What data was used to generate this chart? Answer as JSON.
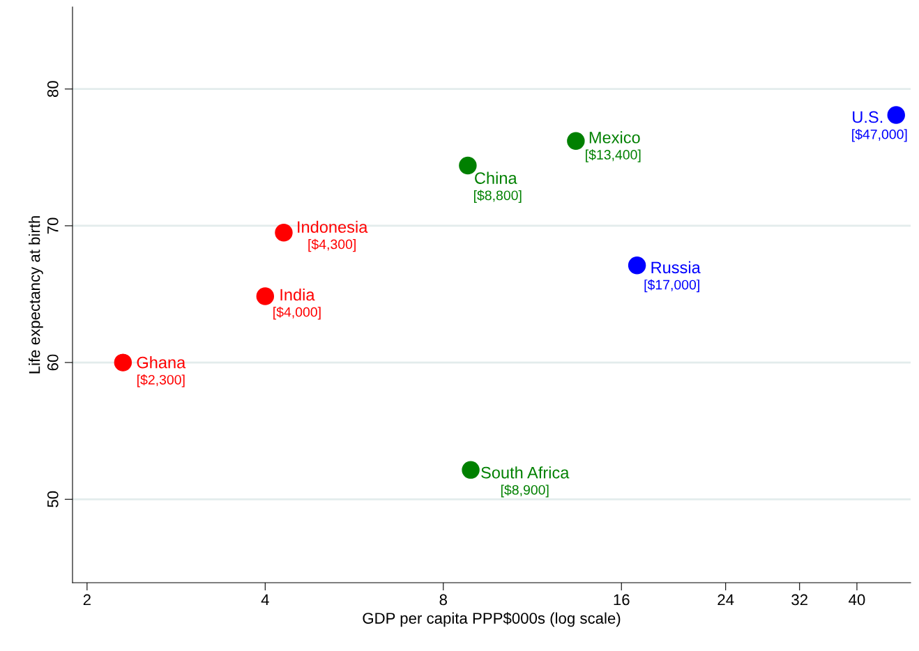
{
  "chart_data": {
    "type": "scatter",
    "xlabel": "GDP per capita PPP$000s (log scale)",
    "ylabel": "Life expectancy at birth",
    "log": "x",
    "grid": "y",
    "marker": "circle",
    "legend": false,
    "xlim": [
      1.89,
      49.3
    ],
    "xticks": [
      2,
      4,
      8,
      16,
      24,
      32,
      40
    ],
    "ylim": [
      43.9,
      86.0
    ],
    "yticks": [
      50,
      60,
      70,
      80
    ],
    "series": [
      {
        "color": "#ff0000",
        "x": [
          2.3,
          4.0,
          4.3
        ],
        "values": [
          60.0,
          64.85,
          69.5
        ]
      },
      {
        "color": "#008000",
        "x": [
          8.8,
          8.9,
          13.4
        ],
        "values": [
          74.4,
          52.15,
          76.2
        ]
      },
      {
        "color": "#0000ff",
        "x": [
          17.0,
          46.6
        ],
        "values": [
          67.1,
          78.1
        ]
      }
    ],
    "annotations": [
      {
        "text": "Ghana\n[$2,300]",
        "x": 2.3,
        "y": 60.0
      },
      {
        "text": "India\n[$4,000]",
        "x": 4.0,
        "y": 64.85
      },
      {
        "text": "Indonesia\n[$4,300]",
        "x": 4.3,
        "y": 69.5
      },
      {
        "text": "China\n[$8,800]",
        "x": 8.8,
        "y": 74.4
      },
      {
        "text": "South Africa\n[$8,900]",
        "x": 8.9,
        "y": 52.15
      },
      {
        "text": "Mexico\n[$13,400]",
        "x": 13.4,
        "y": 76.2
      },
      {
        "text": "Russia\n[$17,000]",
        "x": 17.0,
        "y": 67.1
      },
      {
        "text": "U.S.\n[$47,000]",
        "x": 46.6,
        "y": 78.1
      }
    ]
  }
}
